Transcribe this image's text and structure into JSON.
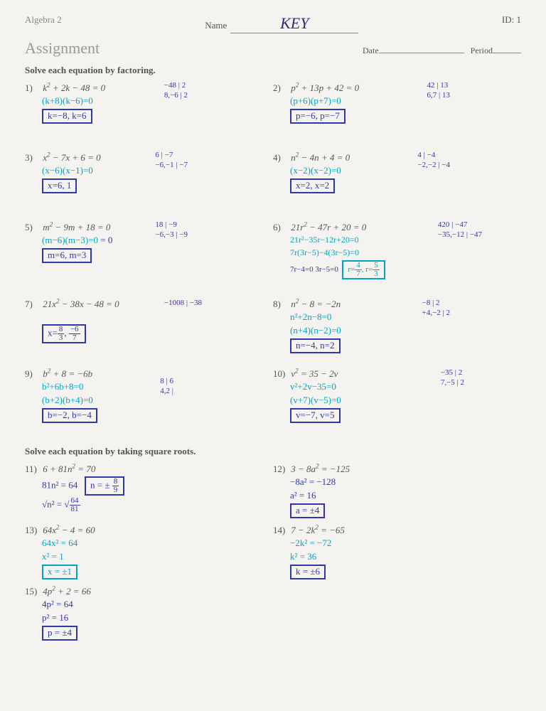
{
  "header": {
    "course": "Algebra 2",
    "name_label": "Name",
    "name_value": "KEY",
    "id_label": "ID: 1",
    "title": "Assignment",
    "date_label": "Date",
    "period_label": "Period"
  },
  "section1_title": "Solve each equation by factoring.",
  "section2_title": "Solve each equation by taking square roots.",
  "problems": {
    "p1": {
      "num": "1)",
      "eq": "k² + 2k − 48 = 0",
      "w1": "(k+8)(k−6)=0",
      "ans": "k=−8, k=6",
      "side": "−48 | 2\n8,−6 | 2"
    },
    "p2": {
      "num": "2)",
      "eq": "p² + 13p + 42 = 0",
      "w1": "(p+6)(p+7)=0",
      "ans": "p=−6, p=−7",
      "side": "42 | 13\n6,7 | 13"
    },
    "p3": {
      "num": "3)",
      "eq": "x² − 7x + 6 = 0",
      "w1": "(x−6)(x−1)=0",
      "ans": "x=6, 1",
      "side": "6 | −7\n−6,−1 | −7"
    },
    "p4": {
      "num": "4)",
      "eq": "n² − 4n + 4 = 0",
      "w1": "(x−2)(x−2)=0",
      "ans": "x=2, x=2",
      "side": "4 | −4\n−2,−2 | −4"
    },
    "p5": {
      "num": "5)",
      "eq": "m² − 9m + 18 = 0",
      "w1": "(m−6)(m−3)=0",
      "ans": "m=6, m=3",
      "side": "18 | −9\n−6,−3 | −9"
    },
    "p6": {
      "num": "6)",
      "eq": "21r² − 47r + 20 = 0",
      "w1": "21r²−35r−12r+20=0",
      "w2": "7r(3r−5)−4(3r−5)=0",
      "w3": "7r−4=0  3r−5=0",
      "ans": "r=4/7, r=5/3",
      "side": "420 | −47\n−35,−12 | −47"
    },
    "p7": {
      "num": "7)",
      "eq": "21x² − 38x − 48 = 0",
      "ans": "x=8/3, −6/7",
      "side": "−1008 | −38"
    },
    "p8": {
      "num": "8)",
      "eq": "n² − 8 = −2n",
      "w1": "n²+2n−8=0",
      "w2": "(n+4)(n−2)=0",
      "ans": "n=−4, n=2",
      "side": "−8 | 2\n+4,−2 | 2"
    },
    "p9": {
      "num": "9)",
      "eq": "b² + 8 = −6b",
      "w1": "b²+6b+8=0",
      "w2": "(b+2)(b+4)=0",
      "ans": "b=−2, b=−4",
      "side": "8 | 6\n4,2 |"
    },
    "p10": {
      "num": "10)",
      "eq": "v² = 35 − 2v",
      "w1": "v²+2v−35=0",
      "w2": "(v+7)(v−5)=0",
      "ans": "v=−7, v=5",
      "side": "−35 | 2\n7,−5 | 2"
    },
    "p11": {
      "num": "11)",
      "eq": "6 + 81n² = 70",
      "w1": "81n² = 64",
      "w2": "√n² = √64/81",
      "ans": "n = ± 8/9"
    },
    "p12": {
      "num": "12)",
      "eq": "3 − 8a² = −125",
      "w1": "−8a² = −128",
      "w2": "a² = 16",
      "ans": "a = ±4"
    },
    "p13": {
      "num": "13)",
      "eq": "64x² − 4 = 60",
      "w1": "64x² = 64",
      "w2": "x² = 1",
      "ans": "x = ±1"
    },
    "p14": {
      "num": "14)",
      "eq": "7 − 2k² = −65",
      "w1": "−2k² = −72",
      "w2": "k² = 36",
      "ans": "k = ±6"
    },
    "p15": {
      "num": "15)",
      "eq": "4p² + 2 = 66",
      "w1": "4p² = 64",
      "w2": "p² = 16",
      "ans": "p = ±4"
    }
  },
  "colors": {
    "print": "#555555",
    "title_gray": "#999999",
    "hand_blue": "#00a5c4",
    "hand_navy": "#3037a8",
    "paper_bg": "#f5f3ef"
  }
}
